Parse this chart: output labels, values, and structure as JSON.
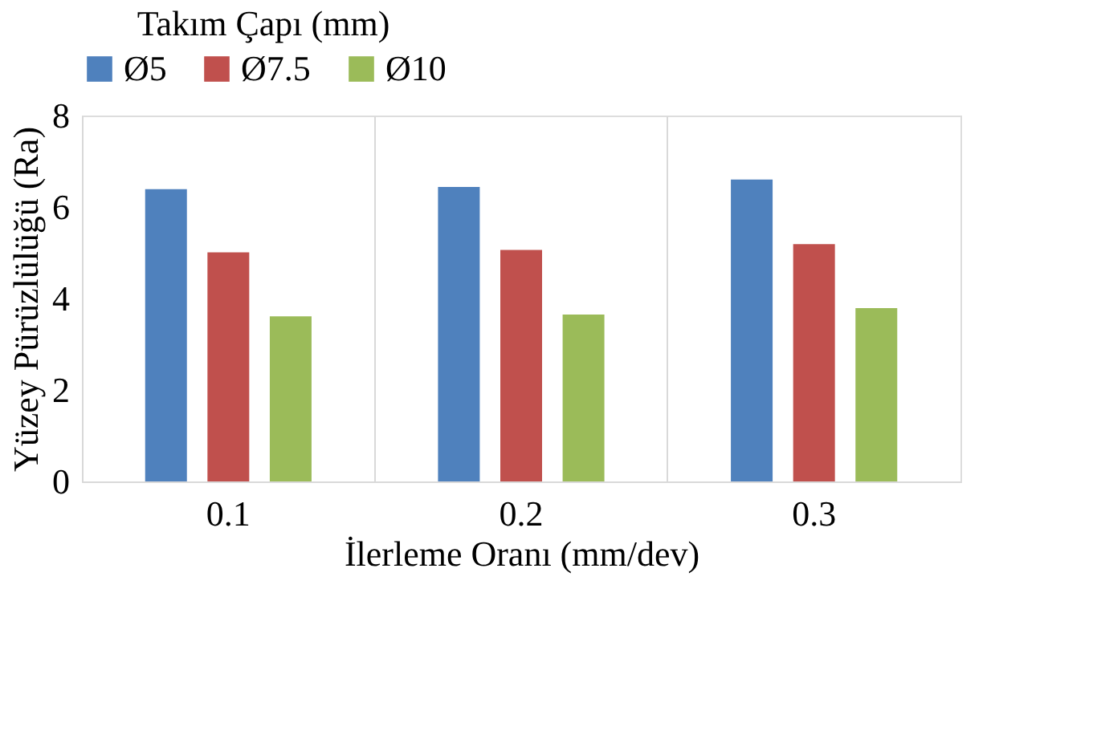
{
  "chart_data": {
    "type": "bar",
    "xlabel": "İlerleme Oranı (mm/dev)",
    "ylabel": "Yüzey Pürüzlülüğü (Ra)",
    "legend_title": "Takım Çapı (mm)",
    "categories": [
      "0.1",
      "0.2",
      "0.3"
    ],
    "series": [
      {
        "name": "Ø5",
        "color": "#4f81bd",
        "values": [
          6.39,
          6.44,
          6.6
        ]
      },
      {
        "name": "Ø7.5",
        "color": "#c0504d",
        "values": [
          5.01,
          5.06,
          5.19
        ]
      },
      {
        "name": "Ø10",
        "color": "#9bbb59",
        "values": [
          3.61,
          3.65,
          3.79
        ]
      }
    ],
    "ylim": [
      0,
      8
    ],
    "yticks": [
      0,
      2,
      4,
      6,
      8
    ],
    "grid": "x",
    "legend": "top"
  }
}
